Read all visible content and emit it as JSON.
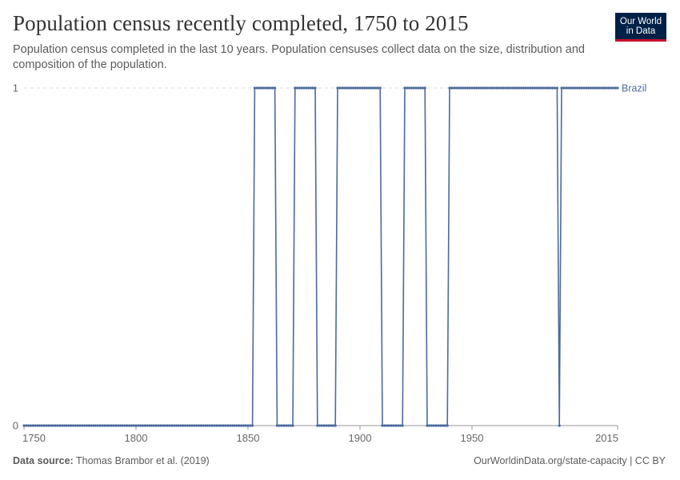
{
  "header": {
    "title": "Population census recently completed, 1750 to 2015",
    "subtitle": "Population census completed in the last 10 years. Population censuses collect data on the size, distribution and composition of the population."
  },
  "logo": {
    "line1": "Our World",
    "line2": "in Data",
    "bg_color": "#002147",
    "accent_color": "#c8102e"
  },
  "footer": {
    "source_label": "Data source:",
    "source_text": "Thomas Brambor et al. (2019)",
    "credit": "OurWorldinData.org/state-capacity | CC BY"
  },
  "chart_data": {
    "type": "line",
    "xlim": [
      1750,
      2015
    ],
    "ylim": [
      0,
      1
    ],
    "x_ticks": [
      1750,
      1800,
      1850,
      1900,
      1950,
      2015
    ],
    "y_ticks": [
      0,
      1
    ],
    "grid": "horizontal dashed",
    "legend": "right end of line",
    "series": [
      {
        "name": "Brazil",
        "color": "#4c6a9c",
        "segments": [
          {
            "from": 1750,
            "to": 1852,
            "value": 0
          },
          {
            "from": 1853,
            "to": 1862,
            "value": 1
          },
          {
            "from": 1863,
            "to": 1870,
            "value": 0
          },
          {
            "from": 1871,
            "to": 1880,
            "value": 1
          },
          {
            "from": 1881,
            "to": 1889,
            "value": 0
          },
          {
            "from": 1890,
            "to": 1909,
            "value": 1
          },
          {
            "from": 1910,
            "to": 1919,
            "value": 0
          },
          {
            "from": 1920,
            "to": 1929,
            "value": 1
          },
          {
            "from": 1930,
            "to": 1939,
            "value": 0
          },
          {
            "from": 1940,
            "to": 1988,
            "value": 1
          },
          {
            "from": 1989,
            "to": 1989,
            "value": 0
          },
          {
            "from": 1990,
            "to": 2015,
            "value": 1
          }
        ]
      }
    ]
  }
}
